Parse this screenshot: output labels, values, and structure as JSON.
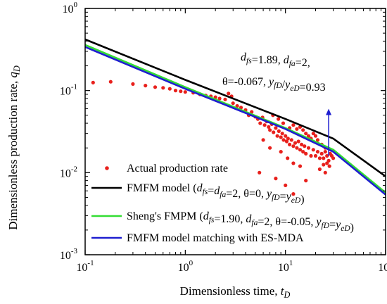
{
  "chart_data": {
    "type": "scatter",
    "xlabel": "Dimensionless time, t_D",
    "ylabel": "Dimensionless production rate, q_D",
    "x_scale": "log",
    "y_scale": "log",
    "xlim": [
      0.1,
      100
    ],
    "ylim": [
      0.001,
      1
    ],
    "x_ticks": [
      {
        "value": 0.1,
        "base": "10",
        "exp": "-1"
      },
      {
        "value": 1,
        "base": "10",
        "exp": "0"
      },
      {
        "value": 10,
        "base": "10",
        "exp": "1"
      },
      {
        "value": 100,
        "base": "10",
        "exp": "2"
      }
    ],
    "y_ticks": [
      {
        "value": 0.001,
        "base": "10",
        "exp": "-3"
      },
      {
        "value": 0.01,
        "base": "10",
        "exp": "-2"
      },
      {
        "value": 0.1,
        "base": "10",
        "exp": "-1"
      },
      {
        "value": 1,
        "base": "10",
        "exp": "0"
      }
    ],
    "grid": false,
    "legend_position": "bottom-left",
    "series": [
      {
        "name": "Actual production rate",
        "kind": "scatter",
        "color": "#e8201c",
        "points": [
          [
            0.12,
            0.125
          ],
          [
            0.18,
            0.128
          ],
          [
            0.3,
            0.12
          ],
          [
            0.4,
            0.115
          ],
          [
            0.5,
            0.11
          ],
          [
            0.6,
            0.108
          ],
          [
            0.7,
            0.105
          ],
          [
            0.8,
            0.1
          ],
          [
            0.9,
            0.098
          ],
          [
            1.0,
            0.096
          ],
          [
            1.2,
            0.094
          ],
          [
            1.4,
            0.09
          ],
          [
            1.6,
            0.087
          ],
          [
            1.8,
            0.085
          ],
          [
            2.0,
            0.083
          ],
          [
            2.2,
            0.08
          ],
          [
            2.5,
            0.078
          ],
          [
            2.7,
            0.092
          ],
          [
            2.9,
            0.085
          ],
          [
            3.0,
            0.07
          ],
          [
            3.3,
            0.065
          ],
          [
            3.6,
            0.062
          ],
          [
            4.0,
            0.058
          ],
          [
            4.3,
            0.05
          ],
          [
            4.6,
            0.055
          ],
          [
            5.0,
            0.048
          ],
          [
            5.3,
            0.045
          ],
          [
            5.6,
            0.04
          ],
          [
            5.9,
            0.047
          ],
          [
            6.2,
            0.038
          ],
          [
            6.5,
            0.042
          ],
          [
            6.8,
            0.036
          ],
          [
            7.0,
            0.033
          ],
          [
            7.3,
            0.039
          ],
          [
            7.6,
            0.031
          ],
          [
            8.0,
            0.035
          ],
          [
            8.3,
            0.028
          ],
          [
            8.6,
            0.032
          ],
          [
            9.0,
            0.027
          ],
          [
            9.3,
            0.03
          ],
          [
            9.6,
            0.025
          ],
          [
            10.0,
            0.028
          ],
          [
            10.3,
            0.024
          ],
          [
            10.6,
            0.026
          ],
          [
            11.0,
            0.022
          ],
          [
            11.5,
            0.025
          ],
          [
            12.0,
            0.021
          ],
          [
            12.5,
            0.023
          ],
          [
            13.0,
            0.02
          ],
          [
            13.5,
            0.024
          ],
          [
            14.0,
            0.019
          ],
          [
            14.5,
            0.022
          ],
          [
            15.0,
            0.018
          ],
          [
            15.5,
            0.021
          ],
          [
            16.0,
            0.017
          ],
          [
            17.0,
            0.02
          ],
          [
            18.0,
            0.016
          ],
          [
            19.0,
            0.019
          ],
          [
            20.0,
            0.016
          ],
          [
            21.0,
            0.018
          ],
          [
            22.0,
            0.015
          ],
          [
            23.0,
            0.017
          ],
          [
            24.0,
            0.015
          ],
          [
            25.0,
            0.018
          ],
          [
            26.0,
            0.016
          ],
          [
            27.0,
            0.014
          ],
          [
            28.0,
            0.017
          ],
          [
            29.0,
            0.016
          ],
          [
            30.0,
            0.015
          ],
          [
            7.5,
            0.05
          ],
          [
            8.5,
            0.045
          ],
          [
            9.5,
            0.04
          ],
          [
            11.0,
            0.035
          ],
          [
            12.0,
            0.038
          ],
          [
            13.0,
            0.034
          ],
          [
            14.0,
            0.036
          ],
          [
            15.0,
            0.033
          ],
          [
            16.0,
            0.03
          ],
          [
            17.0,
            0.028
          ],
          [
            18.0,
            0.026
          ],
          [
            6.0,
            0.025
          ],
          [
            7.0,
            0.02
          ],
          [
            9.0,
            0.018
          ],
          [
            10.5,
            0.015
          ],
          [
            12.0,
            0.013
          ],
          [
            14.0,
            0.012
          ],
          [
            22.0,
            0.011
          ],
          [
            25.0,
            0.01
          ],
          [
            5.5,
            0.01
          ],
          [
            8.0,
            0.0085
          ],
          [
            16.0,
            0.008
          ],
          [
            10.0,
            0.007
          ],
          [
            12.0,
            0.0055
          ],
          [
            24.0,
            0.0125
          ],
          [
            26.0,
            0.013
          ],
          [
            27.5,
            0.012
          ],
          [
            19.0,
            0.03
          ],
          [
            20.0,
            0.028
          ],
          [
            21.0,
            0.025
          ],
          [
            23.0,
            0.022
          ],
          [
            25.0,
            0.02
          ],
          [
            28.5,
            0.019
          ]
        ]
      },
      {
        "name": "FMFM model (d_fs=d_fa=2, θ=0, y_fD=y_eD)",
        "kind": "line",
        "color": "#000000",
        "points": [
          [
            0.1,
            0.42
          ],
          [
            1,
            0.135
          ],
          [
            10,
            0.045
          ],
          [
            30,
            0.026
          ],
          [
            100,
            0.009
          ]
        ]
      },
      {
        "name": "Sheng's FMPM (d_fs=1.90, d_fa=2, θ=-0.05, y_fD=y_eD)",
        "kind": "line",
        "color": "#33dd33",
        "points": [
          [
            0.1,
            0.36
          ],
          [
            1,
            0.11
          ],
          [
            10,
            0.035
          ],
          [
            30,
            0.019
          ],
          [
            100,
            0.0057
          ]
        ]
      },
      {
        "name": "FMFM model matching with ES-MDA",
        "kind": "line",
        "color": "#1f1fd0",
        "points": [
          [
            0.1,
            0.34
          ],
          [
            1,
            0.105
          ],
          [
            10,
            0.034
          ],
          [
            30,
            0.018
          ],
          [
            100,
            0.0054
          ]
        ]
      }
    ],
    "annotation": {
      "line1": "d_fs=1.89, d_fa=2,",
      "line2": "θ=-0.067, y_fD/y_eD=0.93",
      "arrow_x": 27,
      "arrow_from_y": 0.016,
      "arrow_to_y": 0.06,
      "arrow_color": "#1f1fd0"
    }
  }
}
